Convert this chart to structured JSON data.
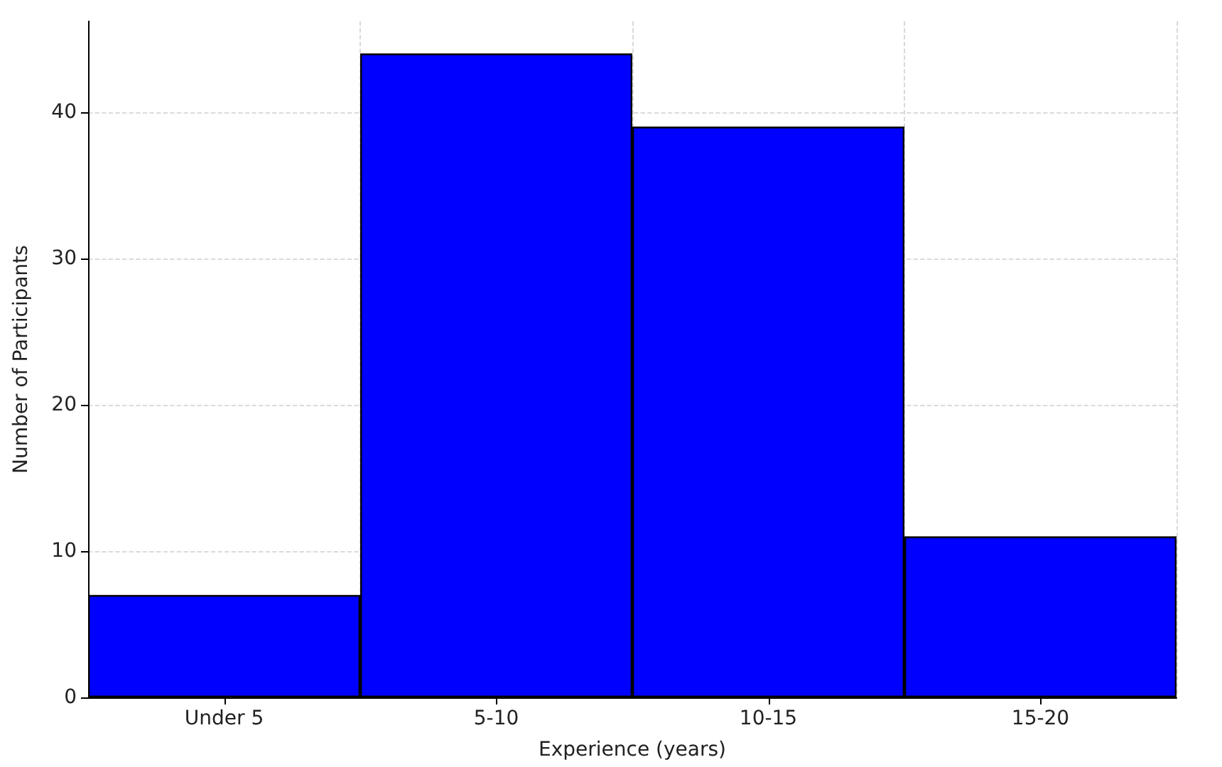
{
  "chart_data": {
    "type": "bar",
    "xlabel": "Experience (years)",
    "ylabel": "Number of Participants",
    "categories": [
      "Under 5",
      "5-10",
      "10-15",
      "15-20"
    ],
    "values": [
      7,
      44,
      39,
      11
    ],
    "color": "#0000ff",
    "ylim": [
      0,
      46.2
    ],
    "yticks": [
      0,
      10,
      20,
      30,
      40
    ],
    "grid": true
  }
}
